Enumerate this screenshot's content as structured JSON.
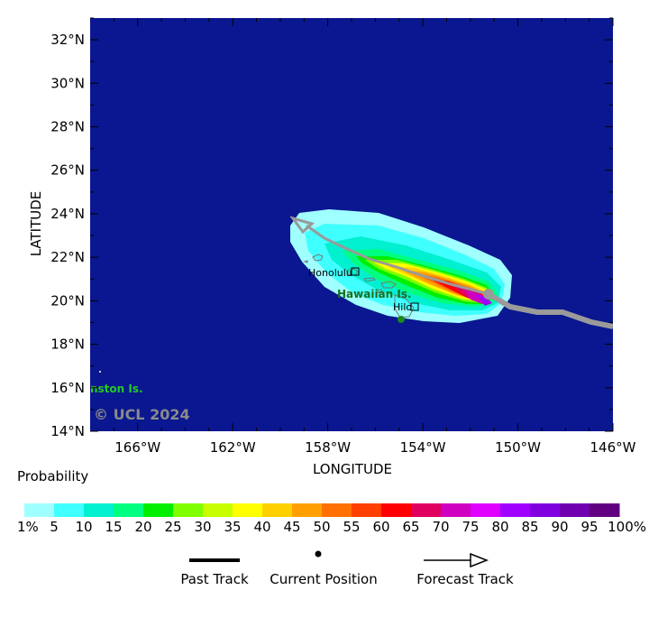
{
  "map": {
    "x_label": "LONGITUDE",
    "y_label": "LATITUDE",
    "lon_ticks": [
      "166°W",
      "162°W",
      "158°W",
      "154°W",
      "150°W",
      "146°W"
    ],
    "lat_ticks": [
      "32°N",
      "30°N",
      "28°N",
      "26°N",
      "24°N",
      "22°N",
      "20°N",
      "18°N",
      "16°N",
      "14°N"
    ],
    "places": {
      "honolulu": "Honolulu",
      "hilo": "Hilo",
      "hawaiian": "Hawaiian Is.",
      "johnston": "nston Is."
    },
    "copyright": "© UCL 2024",
    "ocean_color": "#0a1790",
    "track_color": "#9a9a9a"
  },
  "legend": {
    "title": "Probability",
    "labels": [
      "1%",
      "5",
      "10",
      "15",
      "20",
      "25",
      "30",
      "35",
      "40",
      "45",
      "50",
      "55",
      "60",
      "65",
      "70",
      "75",
      "80",
      "85",
      "90",
      "95",
      "100%"
    ],
    "colors": [
      "#a0ffff",
      "#40ffff",
      "#00f0d0",
      "#00ff80",
      "#00ee00",
      "#80ff00",
      "#c8ff00",
      "#ffff00",
      "#ffd000",
      "#ffa000",
      "#ff7000",
      "#ff4000",
      "#ff0000",
      "#e00060",
      "#d000c0",
      "#e000ff",
      "#a000ff",
      "#8000e0",
      "#7000b0",
      "#600080"
    ],
    "past_track": "Past Track",
    "current_position": "Current Position",
    "forecast_track": "Forecast Track"
  }
}
